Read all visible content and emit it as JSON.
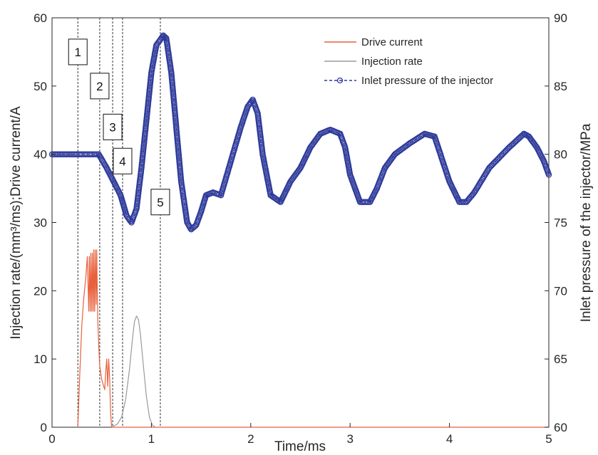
{
  "chart_data": {
    "type": "line",
    "xlabel": "Time/ms",
    "ylabel_left": "Injection rate/(mm³/ms);Drive current/A",
    "ylabel_right": "Inlet pressure of the injector/MPa",
    "xlim": [
      0,
      5
    ],
    "ylim_left": [
      0,
      60
    ],
    "ylim_right": [
      60,
      90
    ],
    "xticks": [
      "0",
      "1",
      "2",
      "3",
      "4",
      "5"
    ],
    "yticks_left": [
      "0",
      "10",
      "20",
      "30",
      "40",
      "50",
      "60"
    ],
    "yticks_right": [
      "60",
      "65",
      "70",
      "75",
      "80",
      "85",
      "90"
    ],
    "grid": false,
    "legend_position": "top-right",
    "colors": {
      "drive_current": "#e8603c",
      "injection_rate": "#9a9a9a",
      "inlet_pressure": "#2e3a9a",
      "vlines": "#333333"
    },
    "series": [
      {
        "name": "Drive current",
        "axis": "left",
        "style": "solid",
        "x": [
          0.26,
          0.28,
          0.3,
          0.32,
          0.34,
          0.355,
          0.36,
          0.37,
          0.375,
          0.385,
          0.39,
          0.4,
          0.405,
          0.415,
          0.42,
          0.43,
          0.435,
          0.445,
          0.45,
          0.46,
          0.47,
          0.48,
          0.5,
          0.52,
          0.53,
          0.54,
          0.55,
          0.56,
          0.57,
          0.58,
          0.59,
          0.6
        ],
        "values": [
          0,
          8,
          15,
          19,
          22,
          25,
          22,
          17,
          25,
          17,
          25.5,
          17,
          25.5,
          17,
          26,
          17,
          26,
          18,
          26,
          16,
          12,
          9,
          7,
          6,
          5.5,
          8,
          10,
          6,
          10,
          7,
          2,
          0
        ]
      },
      {
        "name": "Injection rate",
        "axis": "left",
        "style": "solid",
        "x": [
          0.6,
          0.66,
          0.7,
          0.74,
          0.78,
          0.81,
          0.83,
          0.85,
          0.87,
          0.89,
          0.92,
          0.95,
          0.98,
          1.01,
          1.04
        ],
        "values": [
          0,
          0.5,
          1.5,
          4,
          8.5,
          13,
          15.5,
          16.3,
          15.8,
          13.5,
          9,
          4.5,
          1.5,
          0.3,
          0
        ]
      },
      {
        "name": "Inlet pressure of the injector",
        "axis": "right",
        "style": "dashed-circle",
        "x": [
          0,
          0.25,
          0.3,
          0.4,
          0.47,
          0.55,
          0.62,
          0.69,
          0.75,
          0.8,
          0.85,
          0.9,
          0.95,
          1.0,
          1.05,
          1.1,
          1.12,
          1.15,
          1.2,
          1.25,
          1.3,
          1.36,
          1.4,
          1.45,
          1.5,
          1.55,
          1.62,
          1.7,
          1.78,
          1.9,
          1.97,
          2.02,
          2.07,
          2.12,
          2.2,
          2.3,
          2.4,
          2.5,
          2.6,
          2.7,
          2.8,
          2.9,
          2.95,
          3.0,
          3.1,
          3.2,
          3.27,
          3.35,
          3.45,
          3.6,
          3.75,
          3.85,
          3.9,
          4.0,
          4.1,
          4.17,
          4.25,
          4.4,
          4.6,
          4.75,
          4.8,
          4.88,
          4.95,
          5.0
        ],
        "values": [
          80,
          80,
          80,
          80,
          80,
          79,
          78,
          77,
          75.5,
          75,
          76,
          79,
          82.5,
          86,
          88,
          88.5,
          88.7,
          88.5,
          86,
          82,
          78,
          75,
          74.5,
          74.8,
          75.8,
          77,
          77.2,
          77,
          79,
          82,
          83.5,
          84,
          83,
          80,
          77,
          76.5,
          78,
          79,
          80.5,
          81.5,
          81.8,
          81.5,
          80.5,
          78.5,
          76.5,
          76.5,
          77.5,
          79,
          80,
          80.8,
          81.5,
          81.3,
          80.2,
          78,
          76.5,
          76.5,
          77.2,
          79,
          80.5,
          81.5,
          81.3,
          80.5,
          79.5,
          78.5
        ]
      }
    ],
    "vlines": [
      0.26,
      0.48,
      0.61,
      0.71,
      1.09
    ],
    "annotations": [
      {
        "label": "1",
        "x": 0.26,
        "y": 55
      },
      {
        "label": "2",
        "x": 0.48,
        "y": 50
      },
      {
        "label": "3",
        "x": 0.61,
        "y": 44
      },
      {
        "label": "4",
        "x": 0.71,
        "y": 39
      },
      {
        "label": "5",
        "x": 1.09,
        "y": 33
      }
    ]
  }
}
